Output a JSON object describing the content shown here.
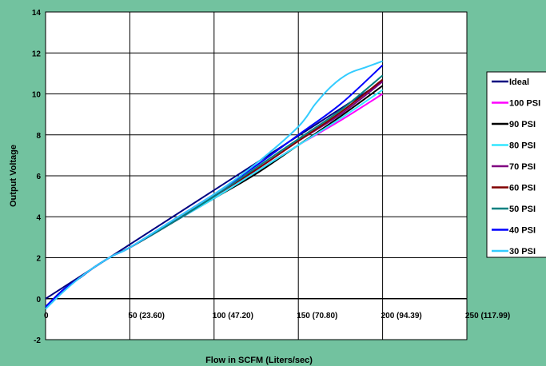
{
  "chart_data": {
    "type": "line",
    "title": "",
    "xlabel": "Flow in SCFM (Liters/sec)",
    "ylabel": "Output Voltage",
    "xlim": [
      0,
      250
    ],
    "ylim": [
      -2,
      14
    ],
    "grid": true,
    "legend_position": "right",
    "x_ticks": [
      {
        "value": 0,
        "label": "0"
      },
      {
        "value": 50,
        "label": "50 (23.60)"
      },
      {
        "value": 100,
        "label": "100 (47.20)"
      },
      {
        "value": 150,
        "label": "150  (70.80)"
      },
      {
        "value": 200,
        "label": "200 (94.39)"
      },
      {
        "value": 250,
        "label": "250 (117.99)"
      }
    ],
    "y_ticks": [
      {
        "value": -2,
        "label": "-2"
      },
      {
        "value": 0,
        "label": "0"
      },
      {
        "value": 2,
        "label": "2"
      },
      {
        "value": 4,
        "label": "4"
      },
      {
        "value": 6,
        "label": "6"
      },
      {
        "value": 8,
        "label": "8"
      },
      {
        "value": 10,
        "label": "10"
      },
      {
        "value": 12,
        "label": "12"
      },
      {
        "value": 14,
        "label": "14"
      }
    ],
    "series": [
      {
        "name": "Ideal",
        "color": "#000080",
        "x": [
          0,
          200
        ],
        "y": [
          0,
          10.6
        ]
      },
      {
        "name": "100 PSI",
        "color": "#ff00ff",
        "x": [
          0,
          10,
          20,
          30,
          40,
          50,
          75,
          100,
          125,
          150,
          175,
          200
        ],
        "y": [
          -0.4,
          0.4,
          1.0,
          1.6,
          2.1,
          2.5,
          3.7,
          4.9,
          6.2,
          7.5,
          8.7,
          10.0
        ]
      },
      {
        "name": "90 PSI",
        "color": "#000000",
        "x": [
          0,
          10,
          20,
          30,
          40,
          50,
          75,
          100,
          125,
          150,
          175,
          200
        ],
        "y": [
          -0.4,
          0.4,
          1.0,
          1.6,
          2.1,
          2.5,
          3.7,
          4.9,
          6.1,
          7.5,
          8.9,
          10.4
        ]
      },
      {
        "name": "80 PSI",
        "color": "#33e6ff",
        "x": [
          0,
          10,
          20,
          30,
          40,
          50,
          75,
          100,
          125,
          150,
          175,
          200
        ],
        "y": [
          -0.4,
          0.4,
          1.0,
          1.6,
          2.1,
          2.5,
          3.7,
          4.9,
          6.2,
          7.5,
          8.8,
          10.2
        ]
      },
      {
        "name": "70 PSI",
        "color": "#800080",
        "x": [
          0,
          10,
          20,
          30,
          40,
          50,
          75,
          100,
          125,
          150,
          175,
          200
        ],
        "y": [
          -0.4,
          0.4,
          1.0,
          1.6,
          2.1,
          2.5,
          3.7,
          5.0,
          6.3,
          7.7,
          9.0,
          10.6
        ]
      },
      {
        "name": "60 PSI",
        "color": "#800000",
        "x": [
          0,
          10,
          20,
          30,
          40,
          50,
          75,
          100,
          125,
          150,
          175,
          200
        ],
        "y": [
          -0.4,
          0.4,
          1.0,
          1.6,
          2.1,
          2.5,
          3.7,
          5.0,
          6.3,
          7.7,
          9.1,
          10.7
        ]
      },
      {
        "name": "50 PSI",
        "color": "#008080",
        "x": [
          0,
          10,
          20,
          30,
          40,
          50,
          75,
          100,
          125,
          150,
          175,
          200
        ],
        "y": [
          -0.4,
          0.4,
          1.0,
          1.6,
          2.1,
          2.5,
          3.7,
          5.0,
          6.4,
          7.8,
          9.2,
          10.9
        ]
      },
      {
        "name": "40 PSI",
        "color": "#0000ff",
        "x": [
          0,
          10,
          20,
          30,
          40,
          50,
          75,
          100,
          125,
          150,
          175,
          200
        ],
        "y": [
          -0.4,
          0.4,
          1.0,
          1.6,
          2.1,
          2.5,
          3.8,
          5.1,
          6.5,
          8.0,
          9.5,
          11.4
        ]
      },
      {
        "name": "30 PSI",
        "color": "#33ccff",
        "x": [
          0,
          10,
          20,
          30,
          40,
          50,
          75,
          100,
          125,
          150,
          160,
          170,
          180,
          190,
          200
        ],
        "y": [
          -0.5,
          0.3,
          1.0,
          1.6,
          2.1,
          2.5,
          3.8,
          5.1,
          6.6,
          8.4,
          9.5,
          10.4,
          11.0,
          11.3,
          11.6
        ]
      }
    ]
  }
}
